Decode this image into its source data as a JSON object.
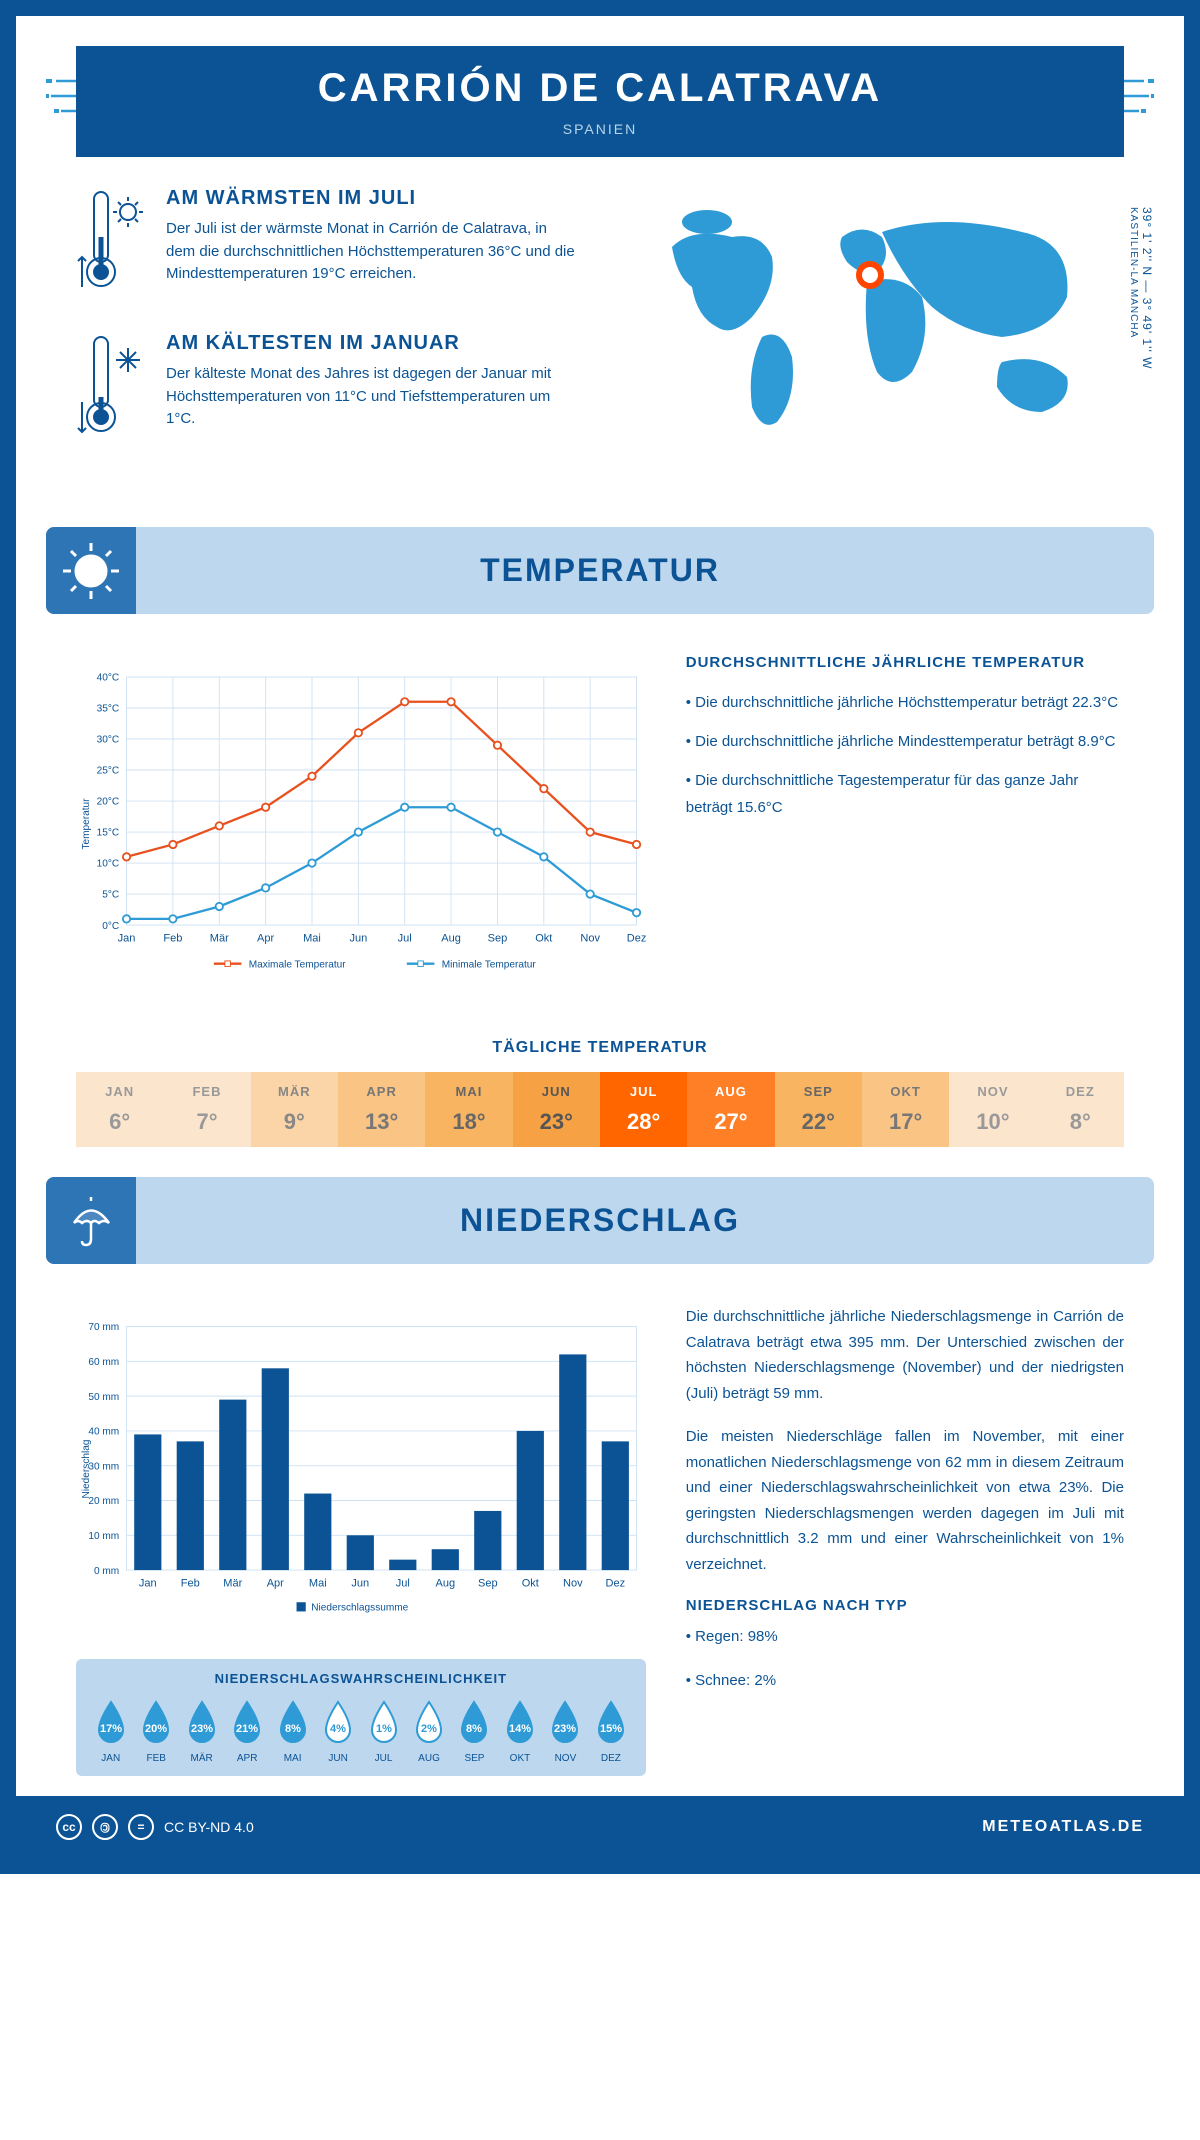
{
  "header": {
    "title": "CARRIÓN DE CALATRAVA",
    "subtitle": "SPANIEN"
  },
  "coords": "39° 1' 2'' N — 3° 49' 1'' W",
  "region": "KASTILIEN-LA MANCHA",
  "warm": {
    "title": "AM WÄRMSTEN IM JULI",
    "text": "Der Juli ist der wärmste Monat in Carrión de Calatrava, in dem die durchschnittlichen Höchsttemperaturen 36°C und die Mindesttemperaturen 19°C erreichen."
  },
  "cold": {
    "title": "AM KÄLTESTEN IM JANUAR",
    "text": "Der kälteste Monat des Jahres ist dagegen der Januar mit Höchsttemperaturen von 11°C und Tiefsttemperaturen um 1°C."
  },
  "temp_section": {
    "title": "TEMPERATUR"
  },
  "temp_chart": {
    "type": "line",
    "months": [
      "Jan",
      "Feb",
      "Mär",
      "Apr",
      "Mai",
      "Jun",
      "Jul",
      "Aug",
      "Sep",
      "Okt",
      "Nov",
      "Dez"
    ],
    "max_values": [
      11,
      13,
      16,
      19,
      24,
      31,
      36,
      36,
      29,
      22,
      15,
      13
    ],
    "min_values": [
      1,
      1,
      3,
      6,
      10,
      15,
      19,
      19,
      15,
      11,
      5,
      2
    ],
    "max_color": "#e8511e",
    "min_color": "#2e9bd6",
    "grid_color": "#cfe2f3",
    "axis_color": "#0b5394",
    "ylim": [
      0,
      40
    ],
    "ytick_step": 5,
    "ylabel": "Temperatur",
    "legend_max": "Maximale Temperatur",
    "legend_min": "Minimale Temperatur"
  },
  "temp_stats": {
    "title": "DURCHSCHNITTLICHE JÄHRLICHE TEMPERATUR",
    "b1": "• Die durchschnittliche jährliche Höchsttemperatur beträgt 22.3°C",
    "b2": "• Die durchschnittliche jährliche Mindesttemperatur beträgt 8.9°C",
    "b3": "• Die durchschnittliche Tagestemperatur für das ganze Jahr beträgt 15.6°C"
  },
  "daily_temp": {
    "title": "TÄGLICHE TEMPERATUR",
    "months": [
      "JAN",
      "FEB",
      "MÄR",
      "APR",
      "MAI",
      "JUN",
      "JUL",
      "AUG",
      "SEP",
      "OKT",
      "NOV",
      "DEZ"
    ],
    "values": [
      "6°",
      "7°",
      "9°",
      "13°",
      "18°",
      "23°",
      "28°",
      "27°",
      "22°",
      "17°",
      "10°",
      "8°"
    ],
    "bg_colors": [
      "#fce5cd",
      "#fce5cd",
      "#fbd5a8",
      "#f9c484",
      "#f8b461",
      "#f6a144",
      "#ff6600",
      "#ff7f27",
      "#f8b461",
      "#f9c484",
      "#fce5cd",
      "#fce5cd"
    ],
    "text_colors": [
      "#999",
      "#999",
      "#888",
      "#777",
      "#666",
      "#555",
      "#fff",
      "#fff",
      "#666",
      "#777",
      "#999",
      "#999"
    ]
  },
  "precip_section": {
    "title": "NIEDERSCHLAG"
  },
  "precip_chart": {
    "type": "bar",
    "months": [
      "Jan",
      "Feb",
      "Mär",
      "Apr",
      "Mai",
      "Jun",
      "Jul",
      "Aug",
      "Sep",
      "Okt",
      "Nov",
      "Dez"
    ],
    "values": [
      39,
      37,
      49,
      58,
      22,
      10,
      3,
      6,
      17,
      40,
      62,
      37
    ],
    "bar_color": "#0b5394",
    "grid_color": "#cfe2f3",
    "ylim": [
      0,
      70
    ],
    "ytick_step": 10,
    "ylabel": "Niederschlag",
    "legend": "Niederschlagssumme"
  },
  "precip_text": {
    "p1": "Die durchschnittliche jährliche Niederschlagsmenge in Carrión de Calatrava beträgt etwa 395 mm. Der Unterschied zwischen der höchsten Niederschlagsmenge (November) und der niedrigsten (Juli) beträgt 59 mm.",
    "p2": "Die meisten Niederschläge fallen im November, mit einer monatlichen Niederschlagsmenge von 62 mm in diesem Zeitraum und einer Niederschlagswahrscheinlichkeit von etwa 23%. Die geringsten Niederschlagsmengen werden dagegen im Juli mit durchschnittlich 3.2 mm und einer Wahrscheinlichkeit von 1% verzeichnet.",
    "type_title": "NIEDERSCHLAG NACH TYP",
    "type1": "• Regen: 98%",
    "type2": "• Schnee: 2%"
  },
  "prob": {
    "title": "NIEDERSCHLAGSWAHRSCHEINLICHKEIT",
    "months": [
      "JAN",
      "FEB",
      "MÄR",
      "APR",
      "MAI",
      "JUN",
      "JUL",
      "AUG",
      "SEP",
      "OKT",
      "NOV",
      "DEZ"
    ],
    "values": [
      "17%",
      "20%",
      "23%",
      "21%",
      "8%",
      "4%",
      "1%",
      "2%",
      "8%",
      "14%",
      "23%",
      "15%"
    ],
    "filled": [
      true,
      true,
      true,
      true,
      true,
      false,
      false,
      false,
      true,
      true,
      true,
      true
    ]
  },
  "footer": {
    "license": "CC BY-ND 4.0",
    "site": "METEOATLAS.DE"
  }
}
